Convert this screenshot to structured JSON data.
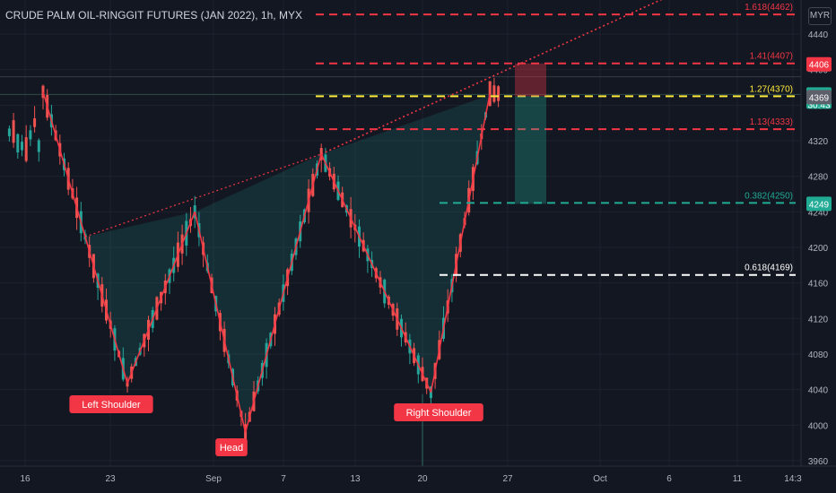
{
  "header": {
    "title": "CRUDE PALM OIL-RINGGIT FUTURES (JAN 2022), 1h, MYX",
    "currency": "MYR"
  },
  "colors": {
    "background": "#131722",
    "up": "#26a69a",
    "down": "#ef5350",
    "red": "#f23645",
    "yellow": "#ffeb3b",
    "green": "#22ab94",
    "white": "#ffffff",
    "axis_text": "#b2b5be"
  },
  "chart_data": {
    "type": "candlestick",
    "ylim": [
      3960,
      4480
    ],
    "y_ticks": [
      3960,
      4000,
      4040,
      4080,
      4120,
      4160,
      4200,
      4240,
      4280,
      4320,
      4360,
      4400,
      4440
    ],
    "x_tick_labels": [
      "16",
      "23",
      "Sep",
      "7",
      "13",
      "20",
      "27",
      "Oct",
      "6",
      "11",
      "14:3"
    ],
    "pattern_points": [
      {
        "bar": 0,
        "price": 4375
      },
      {
        "bar": 5,
        "price": 4212
      },
      {
        "bar": 10,
        "price": 4047
      },
      {
        "bar": 18,
        "price": 4240
      },
      {
        "bar": 24,
        "price": 3992
      },
      {
        "bar": 33,
        "price": 4305
      },
      {
        "bar": 46,
        "price": 4037
      },
      {
        "bar": 53,
        "price": 4373
      }
    ],
    "neckline_extension_end": {
      "bar": 75,
      "price": 4486
    },
    "fib_levels": [
      {
        "label": "1.618(4462)",
        "price": 4462,
        "color": "red"
      },
      {
        "label": "1.41(4407)",
        "price": 4407,
        "color": "red"
      },
      {
        "label": "1.27(4370)",
        "price": 4370,
        "color": "yellow"
      },
      {
        "label": "1.13(4333)",
        "price": 4333,
        "color": "red"
      },
      {
        "label": "0.382(4250)",
        "price": 4250,
        "color": "green"
      },
      {
        "label": "0.618(4169)",
        "price": 4169,
        "color": "white"
      }
    ],
    "annotations": [
      "Left Shoulder",
      "Head",
      "Right Shoulder"
    ],
    "price_tags": [
      {
        "text": "4406",
        "price": 4406,
        "color": "red"
      },
      {
        "text": "4372",
        "sub": "30:43",
        "price": 4372,
        "color": "green"
      },
      {
        "text": "4369",
        "price": 4369,
        "color": "gray"
      },
      {
        "text": "4249",
        "price": 4249,
        "color": "green"
      }
    ],
    "trade_box": {
      "entry": 4370,
      "stop": 4407,
      "target": 4249
    }
  }
}
